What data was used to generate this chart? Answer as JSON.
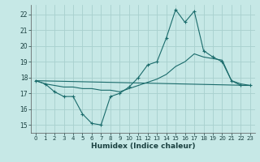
{
  "bg_color": "#c6e8e6",
  "grid_color": "#a8d0ce",
  "line_color": "#1a6b6b",
  "xlabel": "Humidex (Indice chaleur)",
  "ylim": [
    14.5,
    22.6
  ],
  "xlim": [
    -0.5,
    23.5
  ],
  "yticks": [
    15,
    16,
    17,
    18,
    19,
    20,
    21,
    22
  ],
  "xticks": [
    0,
    1,
    2,
    3,
    4,
    5,
    6,
    7,
    8,
    9,
    10,
    11,
    12,
    13,
    14,
    15,
    16,
    17,
    18,
    19,
    20,
    21,
    22,
    23
  ],
  "line1_x": [
    0,
    1,
    2,
    3,
    4,
    5,
    6,
    7,
    8,
    9,
    10,
    11,
    12,
    13,
    14,
    15,
    16,
    17,
    18,
    19,
    20,
    21,
    22,
    23
  ],
  "line1_y": [
    17.8,
    17.6,
    17.1,
    16.8,
    16.8,
    15.7,
    15.1,
    15.0,
    16.8,
    17.0,
    17.4,
    18.0,
    18.8,
    19.0,
    20.5,
    22.3,
    21.5,
    22.2,
    19.7,
    19.3,
    19.0,
    17.8,
    17.5,
    17.5
  ],
  "line2_x": [
    0,
    23
  ],
  "line2_y": [
    17.8,
    17.5
  ],
  "line3_x": [
    0,
    1,
    2,
    3,
    4,
    5,
    6,
    7,
    8,
    9,
    10,
    11,
    12,
    13,
    14,
    15,
    16,
    17,
    18,
    19,
    20,
    21,
    22,
    23
  ],
  "line3_y": [
    17.8,
    17.6,
    17.5,
    17.4,
    17.4,
    17.3,
    17.3,
    17.2,
    17.2,
    17.1,
    17.3,
    17.5,
    17.7,
    17.9,
    18.2,
    18.7,
    19.0,
    19.5,
    19.3,
    19.2,
    19.1,
    17.8,
    17.6,
    17.5
  ],
  "lw": 0.8,
  "marker_size": 3.0
}
